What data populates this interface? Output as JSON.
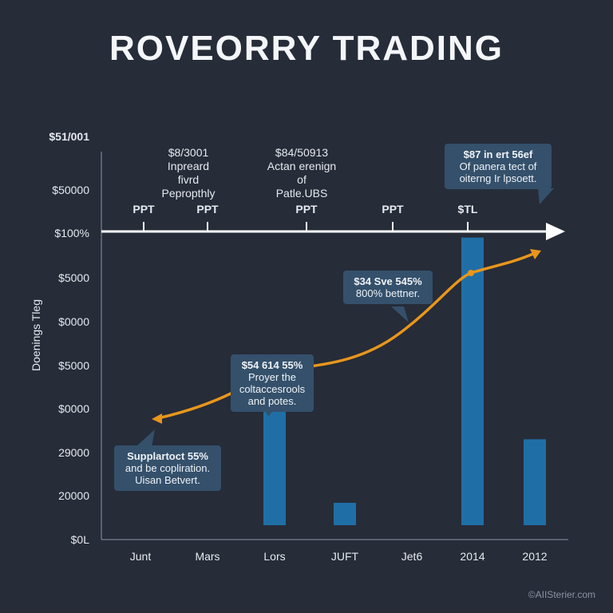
{
  "title": "ROVEORRY TRADING",
  "watermark": "©AIISterier.com",
  "colors": {
    "background": "#262c38",
    "bar": "#1f6fa6",
    "trend": "#e8961c",
    "axis": "#ffffff",
    "callout": "#34506b"
  },
  "chart_data": {
    "type": "bar",
    "ylabel": "Doenings Tleg",
    "y_tick_labels": [
      "$51/001",
      "$50000",
      "$100%",
      "$5000",
      "$0000",
      "$5000",
      "$0000",
      "29000",
      "20000",
      "$0L"
    ],
    "categories": [
      "Junt",
      "Mars",
      "Lors",
      "JUFT",
      "Jet6",
      "2014",
      "2012"
    ],
    "values": [
      null,
      null,
      0.4,
      0.06,
      null,
      0.77,
      0.23
    ],
    "value_scale": "fraction of plot height (axis labels illegible)",
    "timeline": {
      "labels": [
        "PPT",
        "PPT",
        "PPT",
        "PPT",
        "$TL"
      ],
      "notes": [
        {
          "lines": [
            "$8/3001",
            "Inpreard",
            "fivrd",
            "Pepropthly"
          ]
        },
        {
          "lines": [
            "$84/50913",
            "Actan erenign",
            "of",
            "Patle.UBS"
          ]
        }
      ]
    },
    "trend_line": {
      "description": "rising curve with arrowheads at both ends",
      "points": [
        [
          0.08,
          0.28
        ],
        [
          0.5,
          0.45
        ],
        [
          0.78,
          0.62
        ],
        [
          1.0,
          0.72
        ]
      ]
    },
    "callouts": [
      {
        "bold": "$87 in ert 56ef",
        "lines": [
          "Of panera tect of",
          "oiterng Ir lpsoett."
        ]
      },
      {
        "bold": "$34 Sve 545%",
        "lines": [
          "800% bettner."
        ]
      },
      {
        "bold": "$54 614 55%",
        "lines": [
          "Proyer the",
          "coltaccesrools",
          "and potes."
        ]
      },
      {
        "bold": "Supplartoct 55%",
        "lines": [
          "and be copliration.",
          "Uisan Betvert."
        ]
      }
    ]
  }
}
